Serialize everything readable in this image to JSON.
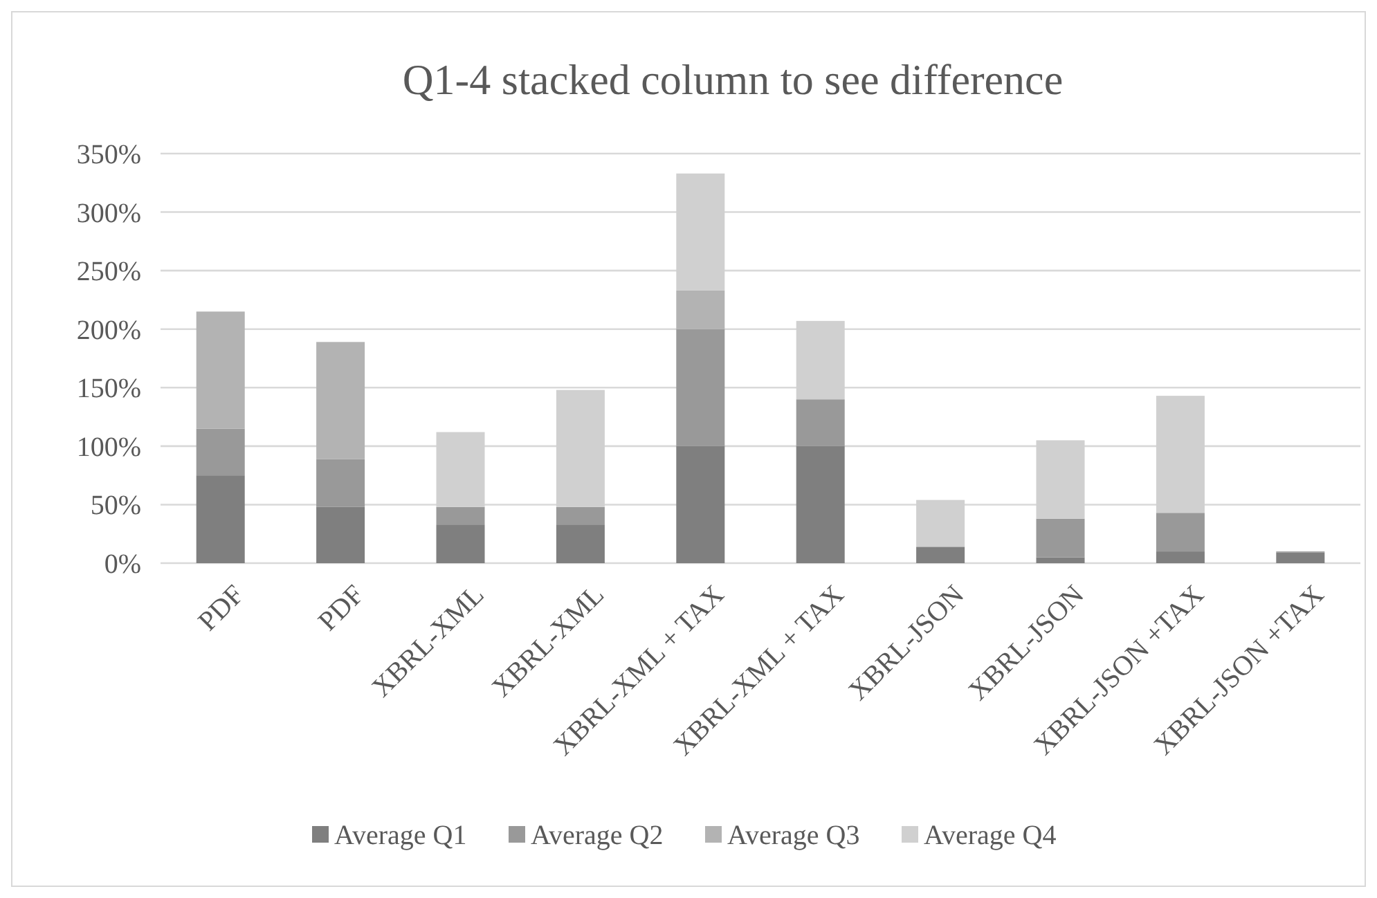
{
  "chart_data": {
    "type": "bar",
    "title": "Q1-4 stacked column to see difference",
    "stacked": true,
    "categories": [
      "PDF",
      "PDF",
      "XBRL-XML",
      "XBRL-XML",
      "XBRL-XML + TAX",
      "XBRL-XML + TAX",
      "XBRL-JSON",
      "XBRL-JSON",
      "XBRL-JSON +TAX",
      "XBRL-JSON +TAX"
    ],
    "series": [
      {
        "name": "Average Q1",
        "color": "#7f7f7f",
        "values": [
          75,
          48,
          33,
          33,
          100,
          100,
          14,
          5,
          10,
          9
        ]
      },
      {
        "name": "Average Q2",
        "color": "#999999",
        "values": [
          40,
          41,
          15,
          15,
          100,
          40,
          0,
          33,
          33,
          1
        ]
      },
      {
        "name": "Average Q3",
        "color": "#b3b3b3",
        "values": [
          100,
          100,
          0,
          0,
          33,
          0,
          0,
          0,
          0,
          0
        ]
      },
      {
        "name": "Average Q4",
        "color": "#d0d0d0",
        "values": [
          0,
          0,
          64,
          100,
          100,
          67,
          40,
          67,
          100,
          0
        ]
      }
    ],
    "ylim": [
      0,
      350
    ],
    "yticks": [
      {
        "value": 0,
        "label": "0%"
      },
      {
        "value": 50,
        "label": "50%"
      },
      {
        "value": 100,
        "label": "100%"
      },
      {
        "value": 150,
        "label": "150%"
      },
      {
        "value": 200,
        "label": "200%"
      },
      {
        "value": 250,
        "label": "250%"
      },
      {
        "value": 300,
        "label": "300%"
      },
      {
        "value": 350,
        "label": "350%"
      }
    ],
    "grid": "y",
    "legend": "bottom"
  }
}
